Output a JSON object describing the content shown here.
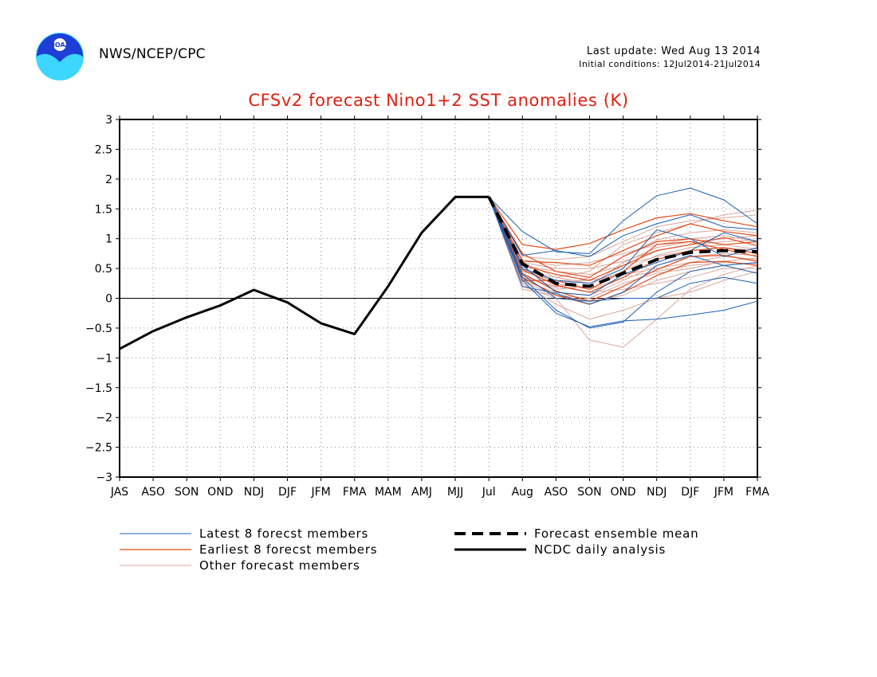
{
  "header": {
    "org": "NWS/NCEP/CPC",
    "logo_text": "NOAA",
    "last_update": "Last update: Wed Aug 13 2014",
    "initial_conditions": "Initial conditions: 12Jul2014-21Jul2014"
  },
  "colors": {
    "title": "#e02010",
    "latest": "#1a5fb4",
    "earliest": "#e04a1a",
    "other": "#d9a79c",
    "analysis": "#000000"
  },
  "chart_data": {
    "type": "line",
    "title": "CFSv2 forecast Nino1+2 SST anomalies (K)",
    "categories": [
      "JAS",
      "ASO",
      "SON",
      "OND",
      "NDJ",
      "DJF",
      "JFM",
      "FMA",
      "MAM",
      "AMJ",
      "MJJ",
      "Jul",
      "Aug",
      "ASO",
      "SON",
      "OND",
      "NDJ",
      "DJF",
      "JFM",
      "FMA"
    ],
    "ylim": [
      -3,
      3
    ],
    "yticks": [
      -3,
      -2.5,
      -2,
      -1.5,
      -1,
      -0.5,
      0,
      0.5,
      1,
      1.5,
      2,
      2.5,
      3
    ],
    "grid": "dotted",
    "zero_line": true,
    "legend": [
      {
        "key": "latest",
        "label": "Latest 8 forecst members"
      },
      {
        "key": "earliest",
        "label": "Earliest 8 forecst members"
      },
      {
        "key": "other",
        "label": "Other forecast members"
      },
      {
        "key": "mean",
        "label": "Forecast ensemble mean"
      },
      {
        "key": "analysis",
        "label": "NCDC daily analysis"
      }
    ],
    "analysis": {
      "name": "NCDC daily analysis",
      "x": [
        0,
        1,
        2,
        3,
        4,
        5,
        6,
        7,
        8,
        9,
        10,
        11
      ],
      "values": [
        -0.85,
        -0.55,
        -0.32,
        -0.12,
        0.14,
        -0.07,
        -0.42,
        -0.6,
        0.2,
        1.1,
        1.7,
        1.7
      ]
    },
    "ensemble_mean": {
      "name": "Forecast ensemble mean",
      "x": [
        11,
        12,
        13,
        14,
        15,
        16,
        17,
        18,
        19
      ],
      "values": [
        1.7,
        0.58,
        0.25,
        0.2,
        0.42,
        0.65,
        0.77,
        0.8,
        0.78
      ]
    },
    "members": {
      "x": [
        11,
        12,
        13,
        14,
        15,
        16,
        17,
        18,
        19
      ],
      "latest": [
        [
          1.7,
          1.12,
          0.78,
          0.75,
          1.3,
          1.72,
          1.85,
          1.65,
          1.25
        ],
        [
          1.7,
          0.72,
          0.8,
          0.7,
          1.05,
          1.25,
          1.4,
          1.2,
          1.15
        ],
        [
          1.7,
          0.35,
          -0.2,
          -0.5,
          -0.4,
          0.1,
          0.45,
          0.55,
          0.42
        ],
        [
          1.7,
          0.3,
          -0.25,
          -0.48,
          -0.38,
          -0.35,
          -0.28,
          -0.2,
          -0.05
        ],
        [
          1.7,
          0.55,
          0.1,
          0.05,
          0.4,
          0.6,
          0.8,
          1.1,
          0.95
        ],
        [
          1.7,
          0.2,
          0.08,
          -0.1,
          0.1,
          0.55,
          0.72,
          0.55,
          0.6
        ],
        [
          1.7,
          0.4,
          0.0,
          -0.05,
          0.0,
          0.0,
          0.25,
          0.35,
          0.25
        ],
        [
          1.7,
          0.5,
          0.3,
          0.25,
          0.5,
          1.15,
          1.0,
          0.7,
          0.85
        ]
      ],
      "earliest": [
        [
          1.7,
          0.9,
          0.82,
          0.92,
          1.15,
          1.35,
          1.42,
          1.3,
          1.2
        ],
        [
          1.7,
          0.62,
          0.6,
          0.55,
          0.8,
          1.05,
          1.25,
          1.12,
          1.05
        ],
        [
          1.7,
          0.75,
          0.45,
          0.35,
          0.7,
          0.95,
          1.0,
          0.9,
          0.95
        ],
        [
          1.7,
          0.55,
          0.4,
          0.3,
          0.55,
          0.8,
          0.9,
          1.02,
          0.88
        ],
        [
          1.7,
          0.48,
          0.22,
          0.1,
          0.35,
          0.65,
          0.8,
          0.85,
          0.75
        ],
        [
          1.7,
          0.42,
          0.12,
          -0.05,
          0.2,
          0.48,
          0.7,
          0.72,
          0.62
        ],
        [
          1.7,
          0.35,
          0.05,
          -0.1,
          0.1,
          0.38,
          0.6,
          0.62,
          0.55
        ],
        [
          1.7,
          0.3,
          0.3,
          0.15,
          0.45,
          0.9,
          0.95,
          0.82,
          0.7
        ]
      ],
      "other": [
        [
          1.7,
          0.2,
          0.0,
          -0.7,
          -0.82,
          -0.35,
          0.15,
          0.4,
          0.55
        ],
        [
          1.7,
          0.25,
          -0.1,
          -0.35,
          -0.2,
          0.0,
          0.1,
          0.3,
          0.45
        ],
        [
          1.7,
          0.35,
          0.2,
          0.1,
          0.15,
          0.25,
          0.35,
          0.5,
          0.5
        ],
        [
          1.7,
          0.45,
          0.3,
          0.3,
          0.4,
          0.5,
          0.6,
          0.7,
          0.65
        ],
        [
          1.7,
          0.55,
          0.45,
          0.4,
          0.55,
          0.7,
          0.8,
          0.85,
          0.8
        ],
        [
          1.7,
          0.65,
          0.55,
          0.6,
          0.75,
          0.9,
          1.0,
          1.05,
          0.95
        ],
        [
          1.7,
          0.7,
          0.65,
          0.7,
          0.95,
          1.2,
          1.3,
          1.35,
          1.4
        ],
        [
          1.7,
          0.6,
          0.35,
          0.45,
          0.9,
          1.1,
          1.25,
          1.4,
          1.48
        ],
        [
          1.7,
          0.4,
          0.15,
          0.2,
          0.6,
          0.85,
          0.95,
          1.0,
          1.05
        ],
        [
          1.7,
          0.3,
          0.1,
          0.05,
          0.3,
          0.55,
          0.7,
          0.75,
          0.72
        ],
        [
          1.7,
          0.5,
          0.25,
          0.15,
          0.35,
          0.45,
          0.55,
          0.6,
          0.58
        ],
        [
          1.7,
          0.15,
          0.05,
          -0.05,
          0.05,
          0.3,
          0.45,
          0.55,
          0.6
        ],
        [
          1.7,
          0.38,
          0.18,
          0.35,
          0.7,
          0.98,
          1.1,
          1.15,
          1.1
        ],
        [
          1.7,
          0.6,
          0.5,
          0.5,
          0.62,
          0.8,
          0.9,
          0.95,
          0.98
        ],
        [
          1.7,
          0.28,
          0.05,
          0.0,
          0.25,
          0.42,
          0.5,
          0.62,
          0.68
        ],
        [
          1.7,
          0.45,
          0.35,
          0.25,
          0.45,
          0.72,
          0.85,
          0.9,
          0.82
        ]
      ]
    }
  }
}
